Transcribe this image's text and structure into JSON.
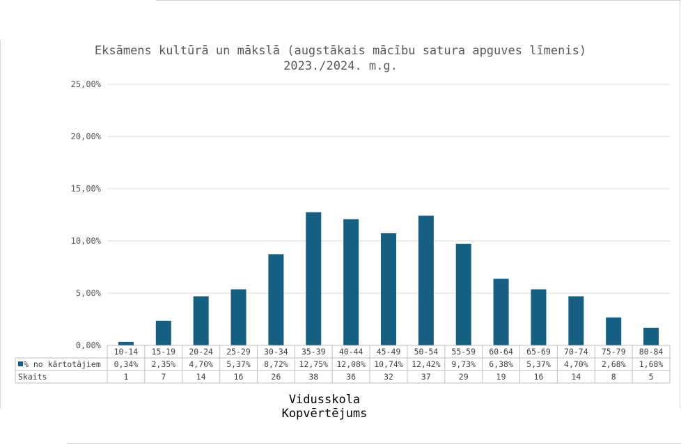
{
  "chart_data": {
    "type": "bar",
    "title": "Eksāmens kultūrā un mākslā (augstākais mācību satura apguves līmenis)",
    "subtitle": "2023./2024. m.g.",
    "categories": [
      "10-14",
      "15-19",
      "20-24",
      "25-29",
      "30-34",
      "35-39",
      "40-44",
      "45-49",
      "50-54",
      "55-59",
      "60-64",
      "65-69",
      "70-74",
      "75-79",
      "80-84"
    ],
    "series": [
      {
        "name": "% no kārtotājiem",
        "values": [
          0.34,
          2.35,
          4.7,
          5.37,
          8.72,
          12.75,
          12.08,
          10.74,
          12.42,
          9.73,
          6.38,
          5.37,
          4.7,
          2.68,
          1.68
        ],
        "color": "#156082"
      }
    ],
    "table_rows": [
      {
        "label": "% no kārtotājiem",
        "cells": [
          "0,34%",
          "2,35%",
          "4,70%",
          "5,37%",
          "8,72%",
          "12,75%",
          "12,08%",
          "10,74%",
          "12,42%",
          "9,73%",
          "6,38%",
          "5,37%",
          "4,70%",
          "2,68%",
          "1,68%"
        ]
      },
      {
        "label": "Skaits",
        "cells": [
          "1",
          "7",
          "14",
          "16",
          "26",
          "38",
          "36",
          "32",
          "37",
          "29",
          "19",
          "16",
          "14",
          "8",
          "5"
        ]
      }
    ],
    "y_ticks": [
      "0,00%",
      "5,00%",
      "10,00%",
      "15,00%",
      "20,00%",
      "25,00%"
    ],
    "ylim": [
      0,
      25
    ],
    "xlabel_lines": [
      "Vidusskola",
      "Kopvērtējums"
    ],
    "grid": true,
    "legend": "data-table"
  }
}
